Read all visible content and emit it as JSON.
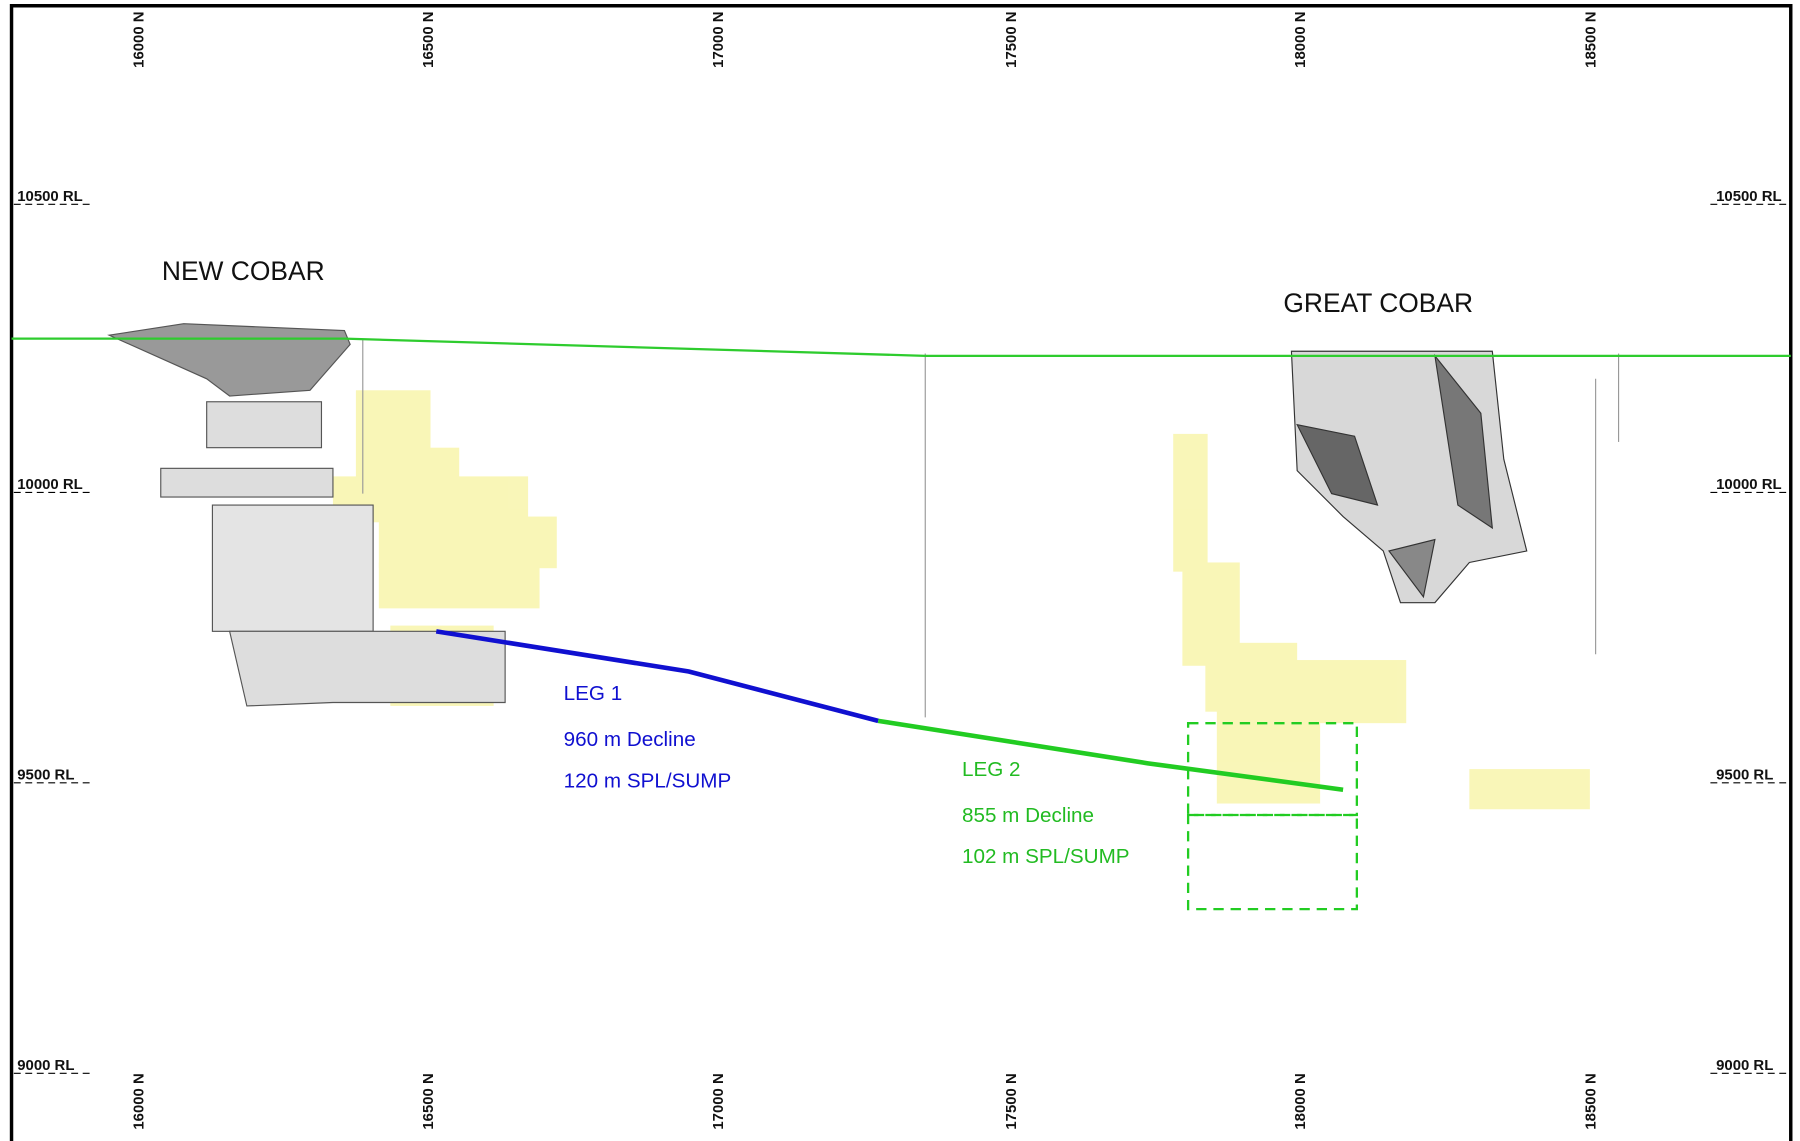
{
  "north_labels": [
    "16000 N",
    "16500 N",
    "17000 N",
    "17500 N",
    "18000 N",
    "18500 N"
  ],
  "rl_labels": [
    "10500 RL",
    "10000 RL",
    "9500 RL",
    "9000 RL"
  ],
  "areas": [
    "NEW COBAR",
    "GREAT COBAR"
  ],
  "legs": [
    {
      "name": "LEG 1",
      "lines": [
        "960 m Decline",
        "120 m SPL/SUMP"
      ]
    },
    {
      "name": "LEG 2",
      "lines": [
        "855 m Decline",
        "102 m SPL/SUMP"
      ]
    }
  ]
}
